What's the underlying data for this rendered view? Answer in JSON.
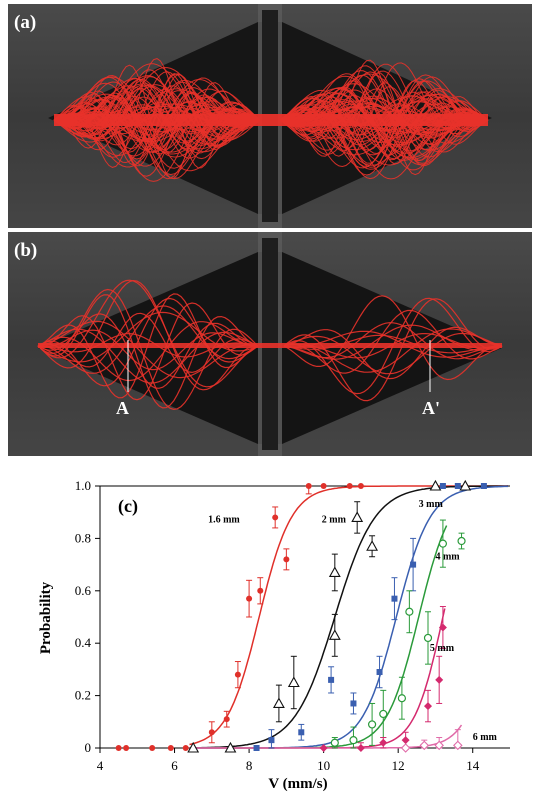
{
  "panels": {
    "a_label": "(a)",
    "b_label": "(b)",
    "b_marker_left": "A",
    "b_marker_right": "A'"
  },
  "colors": {
    "trajectory": "#e8322a",
    "background": "#3a3a3a",
    "chamber": "#151515"
  },
  "chart_data": {
    "type": "scatter",
    "panel_label": "(c)",
    "xlabel": "V (mm/s)",
    "ylabel": "Probability",
    "xlim": [
      4,
      15
    ],
    "ylim": [
      0,
      1.0
    ],
    "x_ticks": [
      4,
      6,
      8,
      10,
      12,
      14
    ],
    "y_ticks": [
      "0",
      "0.2",
      "0.4",
      "0.6",
      "0.8",
      "1.0"
    ],
    "grid": false,
    "series": [
      {
        "name": "1.6 mm",
        "color": "#e0302a",
        "marker": "circle-filled",
        "points": [
          [
            4.5,
            0,
            0
          ],
          [
            4.7,
            0,
            0
          ],
          [
            5.4,
            0,
            0
          ],
          [
            5.9,
            0,
            0
          ],
          [
            6.3,
            0,
            0
          ],
          [
            7.0,
            0.06,
            0.04
          ],
          [
            7.4,
            0.11,
            0.03
          ],
          [
            7.7,
            0.28,
            0.05
          ],
          [
            8.0,
            0.57,
            0.07
          ],
          [
            8.3,
            0.6,
            0.05
          ],
          [
            8.7,
            0.88,
            0.04
          ],
          [
            9.0,
            0.72,
            0.04
          ],
          [
            9.6,
            1.0,
            0.03
          ],
          [
            10.0,
            1.0,
            0
          ],
          [
            10.7,
            1.0,
            0
          ],
          [
            11.0,
            1.0,
            0
          ]
        ],
        "fit": {
          "x0": 8.27,
          "k": 2.3
        }
      },
      {
        "name": "2 mm",
        "color": "#111111",
        "marker": "triangle-open",
        "points": [
          [
            6.5,
            0,
            0
          ],
          [
            7.5,
            0,
            0
          ],
          [
            8.8,
            0.17,
            0.07
          ],
          [
            9.2,
            0.25,
            0.1
          ],
          [
            10.3,
            0.43,
            0.08
          ],
          [
            10.3,
            0.67,
            0.07
          ],
          [
            10.9,
            0.88,
            0.06
          ],
          [
            11.3,
            0.77,
            0.04
          ],
          [
            13.0,
            1.0,
            0
          ],
          [
            13.8,
            1.0,
            0
          ]
        ],
        "fit": {
          "x0": 10.3,
          "k": 1.85
        }
      },
      {
        "name": "3 mm",
        "color": "#3a5fb0",
        "marker": "square-filled",
        "points": [
          [
            8.2,
            0,
            0
          ],
          [
            8.6,
            0.03,
            0.04
          ],
          [
            9.4,
            0.06,
            0.03
          ],
          [
            10.2,
            0.26,
            0.05
          ],
          [
            10.8,
            0.17,
            0.04
          ],
          [
            11.5,
            0.29,
            0.06
          ],
          [
            11.9,
            0.57,
            0.08
          ],
          [
            12.4,
            0.7,
            0.1
          ],
          [
            13.2,
            1.0,
            0
          ],
          [
            13.6,
            1.0,
            0
          ],
          [
            14.3,
            1.0,
            0
          ]
        ],
        "fit": {
          "x0": 11.95,
          "k": 2.2
        }
      },
      {
        "name": "4 mm",
        "color": "#2a9a3a",
        "marker": "circle-open",
        "points": [
          [
            10.3,
            0.02,
            0.02
          ],
          [
            10.8,
            0.03,
            0.05
          ],
          [
            11.3,
            0.09,
            0.08
          ],
          [
            11.6,
            0.13,
            0.09
          ],
          [
            12.1,
            0.19,
            0.08
          ],
          [
            12.3,
            0.52,
            0.08
          ],
          [
            12.8,
            0.42,
            0.1
          ],
          [
            13.2,
            0.78,
            0.09
          ],
          [
            13.7,
            0.79,
            0.03
          ]
        ],
        "fit": {
          "x0": 12.55,
          "k": 2.3
        }
      },
      {
        "name": "5 mm",
        "color": "#d42a6e",
        "marker": "diamond-filled",
        "points": [
          [
            10.0,
            0,
            0
          ],
          [
            11.0,
            0.0,
            0.02
          ],
          [
            11.6,
            0.02,
            0.02
          ],
          [
            12.2,
            0.03,
            0.03
          ],
          [
            12.8,
            0.16,
            0.06
          ],
          [
            13.1,
            0.26,
            0.09
          ],
          [
            13.2,
            0.46,
            0.08
          ]
        ],
        "fit": {
          "x0": 13.2,
          "k": 2.6
        }
      },
      {
        "name": "6 mm",
        "color": "#e06aa8",
        "marker": "diamond-open",
        "points": [
          [
            12.2,
            0,
            0
          ],
          [
            12.7,
            0.01,
            0.02
          ],
          [
            13.1,
            0.01,
            0.03
          ],
          [
            13.6,
            0.01,
            0.06
          ]
        ],
        "fit": {
          "x0": 14.6,
          "k": 2.6
        }
      }
    ]
  }
}
